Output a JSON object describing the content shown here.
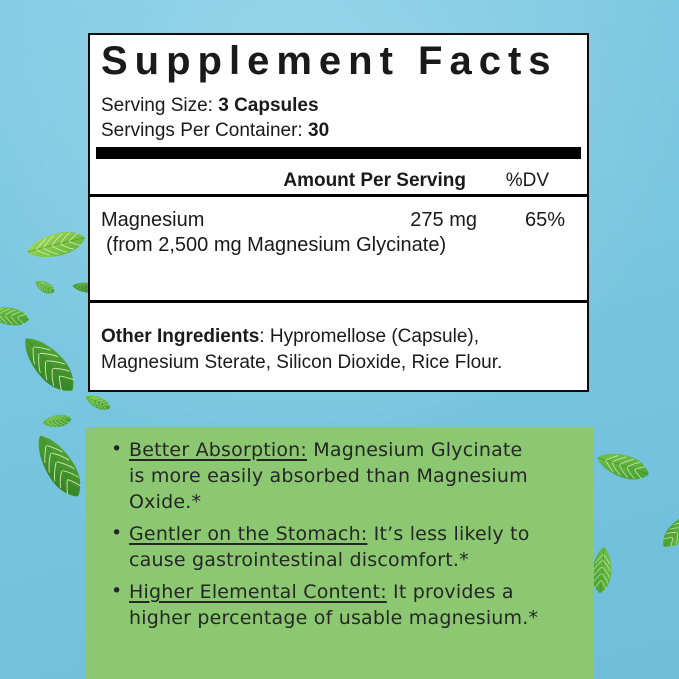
{
  "label": {
    "title": "Supplement Facts",
    "serving_size_label": "Serving Size:",
    "serving_size_value": "3 Capsules",
    "servings_label": "Servings Per Container:",
    "servings_value": "30",
    "amount_header": "Amount Per Serving",
    "dv_header": "%DV",
    "nutrients": [
      {
        "name": "Magnesium",
        "detail": "(from 2,500 mg Magnesium Glycinate)",
        "amount": "275 mg",
        "dv": "65%"
      }
    ],
    "other_ingredients_label": "Other Ingredients",
    "other_ingredients_text": ": Hypromellose (Capsule), Magnesium Sterate, Silicon Dioxide, Rice Flour."
  },
  "benefits": {
    "bullet_char": "•",
    "items": [
      {
        "lead": "Better Absorption:",
        "line1_rest": " Magnesium Glycinate",
        "line2": "is more easily absorbed than Magnesium",
        "line3": "Oxide.*"
      },
      {
        "lead": "Gentler on the Stomach:",
        "line1_rest": " It’s less likely to",
        "line2": "cause gastrointestinal discomfort.*",
        "line3": ""
      },
      {
        "lead": "Higher Elemental Content:",
        "line1_rest": " It provides a",
        "line2": "higher percentage of usable magnesium.*",
        "line3": ""
      }
    ]
  },
  "decor": {
    "leaf_icon": "mint-leaf",
    "leaf_count": 11
  },
  "colors": {
    "sky_blue": "#79c6e0",
    "panel_bg": "#ffffff",
    "panel_border": "#0d0d0d",
    "benefits_bg": "#8bc871",
    "label_text": "#1a1a1a",
    "benefits_text": "#262626",
    "leaf_greens": [
      "#a6dc57",
      "#79c84d",
      "#58aa38",
      "#2e7e22"
    ]
  }
}
